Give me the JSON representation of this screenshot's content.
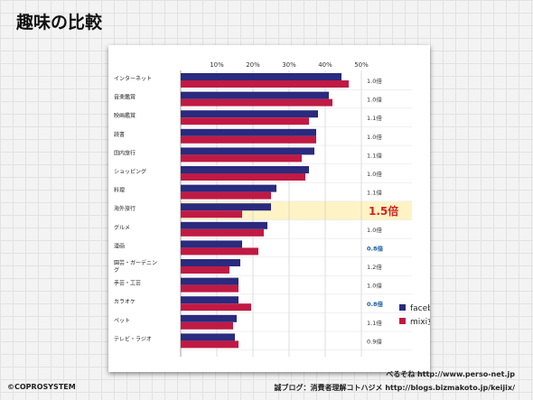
{
  "slide": {
    "title": "趣味の比較",
    "copyright": "©COPROSYSTEM",
    "credit_line1": "べるそね  http://www.perso-net.jp",
    "credit_line2": "誠ブログ：消費者理解コトハジメ  http://blogs.bizmakoto.jp/keijix/"
  },
  "colors": {
    "facebook": "#2a2a7e",
    "mixi": "#c01a44",
    "highlight_band": "#fdf3c4",
    "highlight_text": "#d22020",
    "blue_ratio_text": "#1a5aa0"
  },
  "chart_data": {
    "type": "bar",
    "orientation": "horizontal",
    "x_ticks": [
      "10%",
      "20%",
      "30%",
      "40%",
      "50%"
    ],
    "xlim": [
      0,
      50
    ],
    "grid": true,
    "legend_position": "bottom-right",
    "categories": [
      "インターネット",
      "音楽鑑賞",
      "映画鑑賞",
      "読書",
      "国内旅行",
      "ショッピング",
      "料理",
      "海外旅行",
      "グルメ",
      "漫画",
      "園芸・ガーデニング",
      "手芸・工芸",
      "カラオケ",
      "ペット",
      "テレビ・ラジオ"
    ],
    "series": [
      {
        "name": "facebook女子",
        "color": "#2a2a7e",
        "values": [
          44.5,
          41.0,
          38.0,
          37.5,
          37.0,
          35.5,
          26.5,
          25.0,
          24.0,
          17.0,
          16.5,
          16.0,
          16.0,
          15.5,
          15.0
        ]
      },
      {
        "name": "mixi女子",
        "color": "#c01a44",
        "values": [
          46.5,
          42.0,
          35.5,
          37.5,
          33.5,
          34.5,
          25.0,
          17.0,
          23.0,
          21.5,
          13.5,
          16.0,
          19.5,
          14.5,
          16.0
        ]
      }
    ],
    "ratios": [
      "1.0倍",
      "1.0倍",
      "1.1倍",
      "1.0倍",
      "1.1倍",
      "1.0倍",
      "1.1倍",
      "1.5倍",
      "1.0倍",
      "0.8倍",
      "1.2倍",
      "1.0倍",
      "0.8倍",
      "1.1倍",
      "0.9倍"
    ],
    "highlight_index": 7,
    "blue_ratio_indices": [
      9,
      12
    ]
  }
}
